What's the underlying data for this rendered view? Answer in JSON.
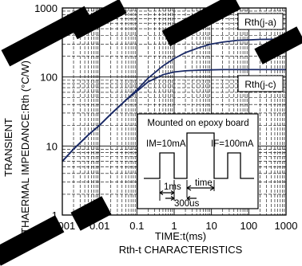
{
  "chart_data": {
    "type": "line",
    "title": "Rth-t CHARACTERISTICS",
    "xlabel": "TIME:t(ms)",
    "ylabel_line1": "TRANSIENT",
    "ylabel_line2": "THAERMAL IMPEDANCE:Rth (°C/W)",
    "x_scale": "log",
    "y_scale": "log",
    "xlim": [
      0.001,
      1000
    ],
    "ylim": [
      1,
      1000
    ],
    "x_ticks": [
      "0.001",
      "0.01",
      "0.1",
      "1",
      "10",
      "100",
      "1000"
    ],
    "y_ticks": [
      "1",
      "10",
      "100",
      "1000"
    ],
    "grid": true,
    "series": [
      {
        "name": "Rth(j-a)",
        "x": [
          0.001,
          0.002,
          0.005,
          0.01,
          0.02,
          0.05,
          0.1,
          0.2,
          0.5,
          1,
          2,
          5,
          10,
          20,
          50,
          100,
          200,
          500,
          1000
        ],
        "y": [
          6,
          9,
          14.5,
          20,
          29,
          46,
          65,
          96,
          145,
          185,
          225,
          270,
          300,
          320,
          340,
          345,
          350,
          352,
          352
        ]
      },
      {
        "name": "Rth(j-c)",
        "x": [
          0.001,
          0.002,
          0.005,
          0.01,
          0.02,
          0.05,
          0.1,
          0.2,
          0.5,
          1,
          2,
          5,
          10,
          20,
          50,
          100,
          200,
          500,
          1000
        ],
        "y": [
          6,
          9,
          14.5,
          20,
          29,
          46,
          62,
          85,
          108,
          118,
          123,
          126,
          127,
          128,
          128,
          128,
          128,
          128,
          128
        ]
      }
    ],
    "inset": {
      "title": "Mounted on epoxy board",
      "left_label": "IM=10mA",
      "right_label": "IF=100mA",
      "pulse_width": "1ms",
      "period_label": "time",
      "spacing_label": "300us"
    }
  },
  "colors": {
    "curve": "#1a2a66",
    "grid": "#000000"
  }
}
